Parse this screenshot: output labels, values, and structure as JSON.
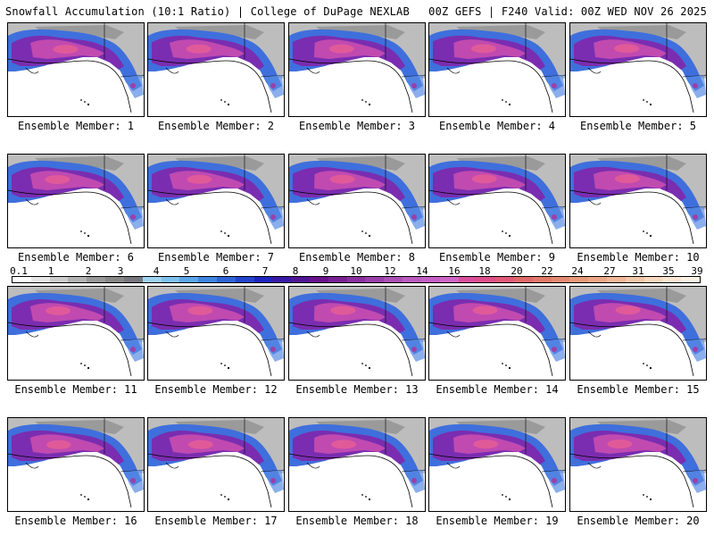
{
  "header": {
    "left": "Snowfall Accumulation (10:1 Ratio) | College of DuPage NEXLAB",
    "right": "00Z GEFS | F240 Valid: 00Z WED NOV 26 2025"
  },
  "map_label": "map-of-alaska-and-pacific-northwest-snowfall",
  "panels": [
    {
      "label": "Ensemble Member: 1"
    },
    {
      "label": "Ensemble Member: 2"
    },
    {
      "label": "Ensemble Member: 3"
    },
    {
      "label": "Ensemble Member: 4"
    },
    {
      "label": "Ensemble Member: 5"
    },
    {
      "label": "Ensemble Member: 6"
    },
    {
      "label": "Ensemble Member: 7"
    },
    {
      "label": "Ensemble Member: 8"
    },
    {
      "label": "Ensemble Member: 9"
    },
    {
      "label": "Ensemble Member: 10"
    },
    {
      "label": "Ensemble Member: 11"
    },
    {
      "label": "Ensemble Member: 12"
    },
    {
      "label": "Ensemble Member: 13"
    },
    {
      "label": "Ensemble Member: 14"
    },
    {
      "label": "Ensemble Member: 15"
    },
    {
      "label": "Ensemble Member: 16"
    },
    {
      "label": "Ensemble Member: 17"
    },
    {
      "label": "Ensemble Member: 18"
    },
    {
      "label": "Ensemble Member: 19"
    },
    {
      "label": "Ensemble Member: 20"
    }
  ],
  "colorbar": {
    "labels": [
      "0.1",
      "1",
      "2",
      "3",
      "4",
      "5",
      "6",
      "7",
      "8",
      "9",
      "10",
      "12",
      "14",
      "16",
      "18",
      "20",
      "22",
      "24",
      "27",
      "31",
      "35",
      "39"
    ],
    "colors": [
      "#ffffff",
      "#e6e6e6",
      "#cccccc",
      "#b3b3b3",
      "#999999",
      "#888888",
      "#77777f",
      "#9fd3f0",
      "#7ec1ee",
      "#5aa6ea",
      "#3f86e0",
      "#2f65d6",
      "#2344cc",
      "#1f25c0",
      "#3a1aa8",
      "#521596",
      "#6a148c",
      "#7b2196",
      "#8b30a0",
      "#9b40aa",
      "#ab50b4",
      "#bb5cbe",
      "#c660c3",
      "#d066c6",
      "#da4f9a",
      "#e0508a",
      "#e05a78",
      "#e06a6a",
      "#e27a6a",
      "#e48a72",
      "#e89a7a",
      "#eca886",
      "#f0b898",
      "#f4c8aa",
      "#f8d8bf",
      "#fbe6d2",
      "#fdf2e6"
    ]
  }
}
